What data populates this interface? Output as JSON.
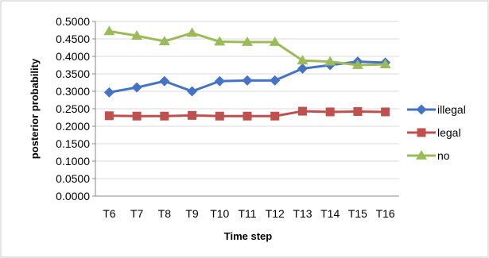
{
  "chart_data": {
    "type": "line",
    "xlabel": "Time step",
    "ylabel": "posterior probability",
    "categories": [
      "T6",
      "T7",
      "T8",
      "T9",
      "T10",
      "T11",
      "T12",
      "T13",
      "T14",
      "T15",
      "T16"
    ],
    "yticks": [
      "0.0000",
      "0.0500",
      "0.1000",
      "0.1500",
      "0.2000",
      "0.2500",
      "0.3000",
      "0.3500",
      "0.4000",
      "0.4500",
      "0.5000"
    ],
    "ylim": [
      0,
      0.5
    ],
    "grid": "horizontal",
    "legend_position": "right",
    "series": [
      {
        "name": "illegal",
        "color": "#4472C4",
        "marker": "diamond",
        "values": [
          0.297,
          0.311,
          0.329,
          0.3,
          0.329,
          0.331,
          0.331,
          0.365,
          0.375,
          0.385,
          0.382
        ]
      },
      {
        "name": "legal",
        "color": "#C0504D",
        "marker": "square",
        "values": [
          0.23,
          0.229,
          0.229,
          0.231,
          0.229,
          0.229,
          0.229,
          0.243,
          0.241,
          0.242,
          0.241
        ]
      },
      {
        "name": "no",
        "color": "#9BBB59",
        "marker": "triangle",
        "values": [
          0.472,
          0.459,
          0.443,
          0.467,
          0.442,
          0.441,
          0.441,
          0.388,
          0.385,
          0.375,
          0.377
        ]
      }
    ]
  }
}
